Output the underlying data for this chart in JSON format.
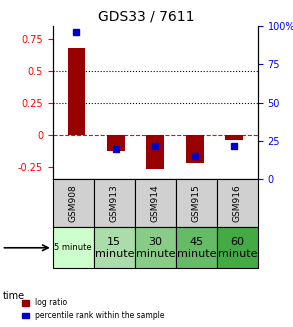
{
  "title": "GDS33 / 7611",
  "samples": [
    "GSM908",
    "GSM913",
    "GSM914",
    "GSM915",
    "GSM916"
  ],
  "time_labels": [
    "5 minute",
    "15\nminute",
    "30\nminute",
    "45\nminute",
    "60\nminute"
  ],
  "time_colors": [
    "#ccffcc",
    "#99ee99",
    "#66dd66",
    "#44cc44",
    "#22bb22"
  ],
  "log_ratios": [
    0.68,
    -0.13,
    -0.27,
    -0.22,
    -0.04
  ],
  "percentile_ranks": [
    96,
    20,
    22,
    15,
    22
  ],
  "bar_color": "#990000",
  "dot_color": "#0000cc",
  "ylim_left": [
    -0.35,
    0.85
  ],
  "ylim_right": [
    0,
    100
  ],
  "yticks_left": [
    -0.25,
    0,
    0.25,
    0.5,
    0.75
  ],
  "yticks_right": [
    0,
    25,
    50,
    75,
    100
  ],
  "hlines": [
    0.5,
    0.25
  ],
  "background_color": "#f0f0f0",
  "plot_bg": "#ffffff"
}
